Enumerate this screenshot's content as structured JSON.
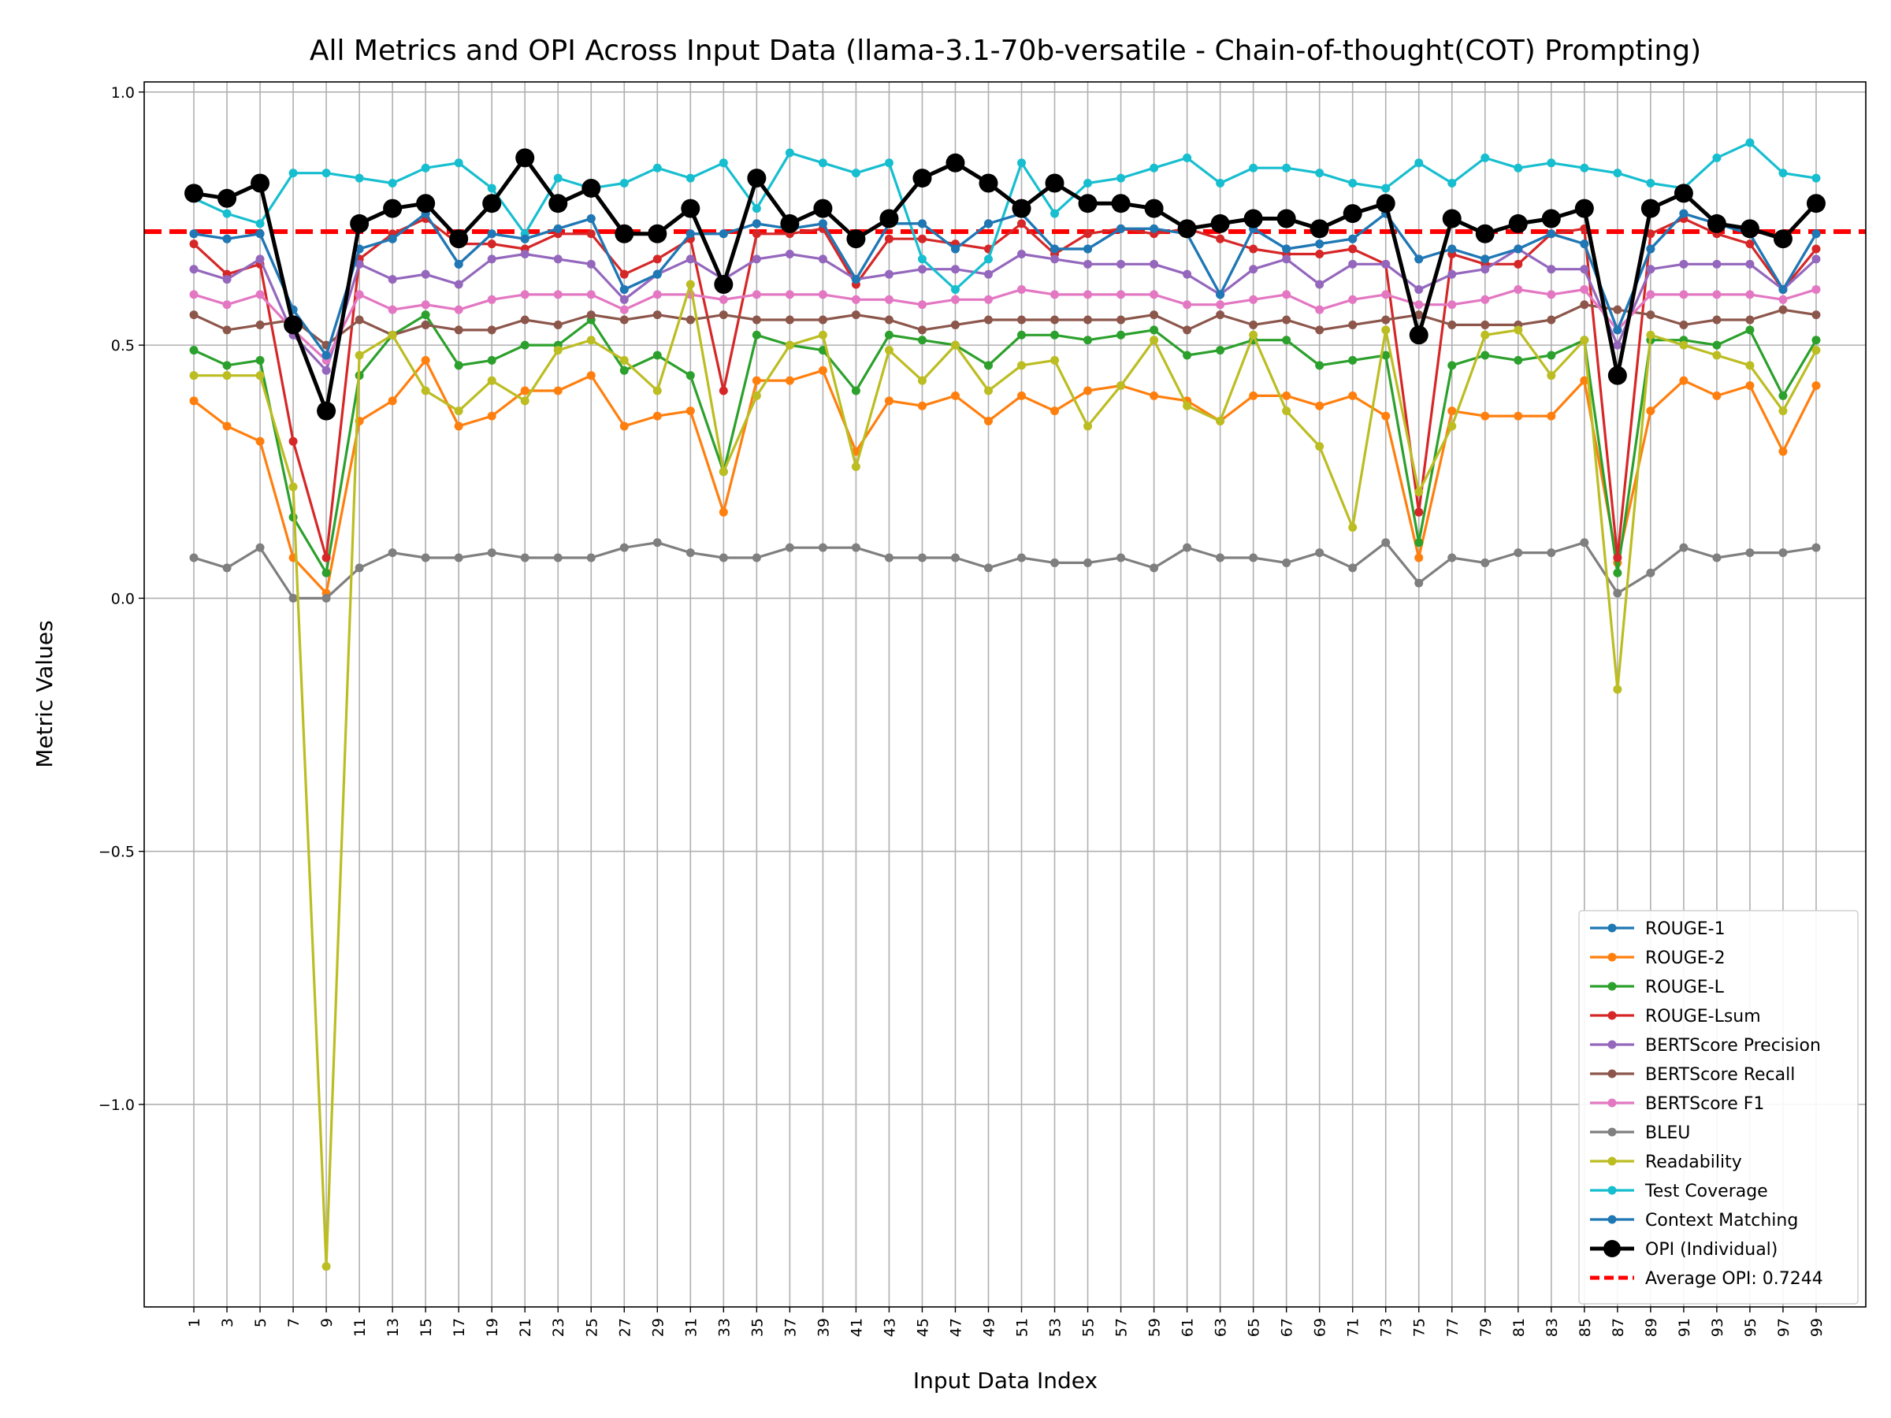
{
  "chart_data": {
    "type": "line",
    "title": "All Metrics and OPI Across Input Data (llama-3.1-70b-versatile - Chain-of-thought(COT) Prompting)",
    "xlabel": "Input Data Index",
    "ylabel": "Metric Values",
    "xlim": [
      -2,
      102
    ],
    "ylim": [
      -1.4,
      1.02
    ],
    "yticks": [
      1.0,
      0.5,
      0.0,
      -0.5,
      -1.0
    ],
    "ytick_labels": [
      "1.0",
      "0.5",
      "0.0",
      "−0.5",
      "−1.0"
    ],
    "xticks": [
      1,
      3,
      5,
      7,
      9,
      11,
      13,
      15,
      17,
      19,
      21,
      23,
      25,
      27,
      29,
      31,
      33,
      35,
      37,
      39,
      41,
      43,
      45,
      47,
      49,
      51,
      53,
      55,
      57,
      59,
      61,
      63,
      65,
      67,
      69,
      71,
      73,
      75,
      77,
      79,
      81,
      83,
      85,
      87,
      89,
      91,
      93,
      95,
      97,
      99
    ],
    "xtick_labels": [
      "1",
      "3",
      "5",
      "7",
      "9",
      "11",
      "13",
      "15",
      "17",
      "19",
      "21",
      "23",
      "25",
      "27",
      "29",
      "31",
      "33",
      "35",
      "37",
      "39",
      "41",
      "43",
      "45",
      "47",
      "49",
      "51",
      "53",
      "55",
      "57",
      "59",
      "61",
      "63",
      "65",
      "67",
      "69",
      "71",
      "73",
      "75",
      "77",
      "79",
      "81",
      "83",
      "85",
      "87",
      "89",
      "91",
      "93",
      "95",
      "97",
      "99"
    ],
    "grid": true,
    "legend_position": "lower-right",
    "x": [
      1,
      3,
      5,
      7,
      9,
      11,
      13,
      15,
      17,
      19,
      21,
      23,
      25,
      27,
      29,
      31,
      33,
      35,
      37,
      39,
      41,
      43,
      45,
      47,
      49,
      51,
      53,
      55,
      57,
      59,
      61,
      63,
      65,
      67,
      69,
      71,
      73,
      75,
      77,
      79,
      81,
      83,
      85,
      87,
      89,
      91,
      93,
      95,
      97,
      99
    ],
    "series": [
      {
        "name": "ROUGE-1",
        "color": "#1f77b4",
        "values": [
          0.72,
          0.71,
          0.72,
          0.57,
          0.48,
          0.69,
          0.71,
          0.76,
          0.66,
          0.72,
          0.71,
          0.73,
          0.75,
          0.61,
          0.64,
          0.72,
          0.72,
          0.74,
          0.73,
          0.74,
          0.63,
          0.74,
          0.74,
          0.69,
          0.74,
          0.76,
          0.69,
          0.69,
          0.73,
          0.73,
          0.72,
          0.6,
          0.73,
          0.69,
          0.7,
          0.71,
          0.76,
          0.67,
          0.69,
          0.67,
          0.69,
          0.72,
          0.7,
          0.53,
          0.69,
          0.76,
          0.74,
          0.72,
          0.61,
          0.72
        ]
      },
      {
        "name": "ROUGE-2",
        "color": "#ff7f0e",
        "values": [
          0.39,
          0.34,
          0.31,
          0.08,
          0.01,
          0.35,
          0.39,
          0.47,
          0.34,
          0.36,
          0.41,
          0.41,
          0.44,
          0.34,
          0.36,
          0.37,
          0.17,
          0.43,
          0.43,
          0.45,
          0.29,
          0.39,
          0.38,
          0.4,
          0.35,
          0.4,
          0.37,
          0.41,
          0.42,
          0.4,
          0.39,
          0.35,
          0.4,
          0.4,
          0.38,
          0.4,
          0.36,
          0.08,
          0.37,
          0.36,
          0.36,
          0.36,
          0.43,
          0.07,
          0.37,
          0.43,
          0.4,
          0.42,
          0.29,
          0.42
        ]
      },
      {
        "name": "ROUGE-L",
        "color": "#2ca02c",
        "values": [
          0.49,
          0.46,
          0.47,
          0.16,
          0.05,
          0.44,
          0.52,
          0.56,
          0.46,
          0.47,
          0.5,
          0.5,
          0.55,
          0.45,
          0.48,
          0.44,
          0.25,
          0.52,
          0.5,
          0.49,
          0.41,
          0.52,
          0.51,
          0.5,
          0.46,
          0.52,
          0.52,
          0.51,
          0.52,
          0.53,
          0.48,
          0.49,
          0.51,
          0.51,
          0.46,
          0.47,
          0.48,
          0.11,
          0.46,
          0.48,
          0.47,
          0.48,
          0.51,
          0.05,
          0.51,
          0.51,
          0.5,
          0.53,
          0.4,
          0.51
        ]
      },
      {
        "name": "ROUGE-Lsum",
        "color": "#d62728",
        "values": [
          0.7,
          0.64,
          0.66,
          0.31,
          0.08,
          0.67,
          0.72,
          0.75,
          0.7,
          0.7,
          0.69,
          0.72,
          0.72,
          0.64,
          0.67,
          0.71,
          0.41,
          0.72,
          0.72,
          0.73,
          0.62,
          0.71,
          0.71,
          0.7,
          0.69,
          0.74,
          0.68,
          0.72,
          0.73,
          0.72,
          0.73,
          0.71,
          0.69,
          0.68,
          0.68,
          0.69,
          0.66,
          0.17,
          0.68,
          0.66,
          0.66,
          0.72,
          0.73,
          0.08,
          0.72,
          0.75,
          0.72,
          0.7,
          0.61,
          0.69
        ]
      },
      {
        "name": "BERTScore Precision",
        "color": "#9467bd",
        "values": [
          0.65,
          0.63,
          0.67,
          0.52,
          0.45,
          0.66,
          0.63,
          0.64,
          0.62,
          0.67,
          0.68,
          0.67,
          0.66,
          0.59,
          0.64,
          0.67,
          0.63,
          0.67,
          0.68,
          0.67,
          0.63,
          0.64,
          0.65,
          0.65,
          0.64,
          0.68,
          0.67,
          0.66,
          0.66,
          0.66,
          0.64,
          0.6,
          0.65,
          0.67,
          0.62,
          0.66,
          0.66,
          0.61,
          0.64,
          0.65,
          0.69,
          0.65,
          0.65,
          0.5,
          0.65,
          0.66,
          0.66,
          0.66,
          0.61,
          0.67
        ]
      },
      {
        "name": "BERTScore Recall",
        "color": "#8c564b",
        "values": [
          0.56,
          0.53,
          0.54,
          0.55,
          0.5,
          0.55,
          0.52,
          0.54,
          0.53,
          0.53,
          0.55,
          0.54,
          0.56,
          0.55,
          0.56,
          0.55,
          0.56,
          0.55,
          0.55,
          0.55,
          0.56,
          0.55,
          0.53,
          0.54,
          0.55,
          0.55,
          0.55,
          0.55,
          0.55,
          0.56,
          0.53,
          0.56,
          0.54,
          0.55,
          0.53,
          0.54,
          0.55,
          0.56,
          0.54,
          0.54,
          0.54,
          0.55,
          0.58,
          0.57,
          0.56,
          0.54,
          0.55,
          0.55,
          0.57,
          0.56
        ]
      },
      {
        "name": "BERTScore F1",
        "color": "#e377c2",
        "values": [
          0.6,
          0.58,
          0.6,
          0.53,
          0.47,
          0.6,
          0.57,
          0.58,
          0.57,
          0.59,
          0.6,
          0.6,
          0.6,
          0.57,
          0.6,
          0.6,
          0.59,
          0.6,
          0.6,
          0.6,
          0.59,
          0.59,
          0.58,
          0.59,
          0.59,
          0.61,
          0.6,
          0.6,
          0.6,
          0.6,
          0.58,
          0.58,
          0.59,
          0.6,
          0.57,
          0.59,
          0.6,
          0.58,
          0.58,
          0.59,
          0.61,
          0.6,
          0.61,
          0.53,
          0.6,
          0.6,
          0.6,
          0.6,
          0.59,
          0.61
        ]
      },
      {
        "name": "BLEU",
        "color": "#7f7f7f",
        "values": [
          0.08,
          0.06,
          0.1,
          0.0,
          0.0,
          0.06,
          0.09,
          0.08,
          0.08,
          0.09,
          0.08,
          0.08,
          0.08,
          0.1,
          0.11,
          0.09,
          0.08,
          0.08,
          0.1,
          0.1,
          0.1,
          0.08,
          0.08,
          0.08,
          0.06,
          0.08,
          0.07,
          0.07,
          0.08,
          0.06,
          0.1,
          0.08,
          0.08,
          0.07,
          0.09,
          0.06,
          0.11,
          0.03,
          0.08,
          0.07,
          0.09,
          0.09,
          0.11,
          0.01,
          0.05,
          0.1,
          0.08,
          0.09,
          0.09,
          0.1
        ]
      },
      {
        "name": "Readability",
        "color": "#bcbd22",
        "values": [
          0.44,
          0.44,
          0.44,
          0.22,
          -1.32,
          0.48,
          0.52,
          0.41,
          0.37,
          0.43,
          0.39,
          0.49,
          0.51,
          0.47,
          0.41,
          0.62,
          0.25,
          0.4,
          0.5,
          0.52,
          0.26,
          0.49,
          0.43,
          0.5,
          0.41,
          0.46,
          0.47,
          0.34,
          0.42,
          0.51,
          0.38,
          0.35,
          0.52,
          0.37,
          0.3,
          0.14,
          0.53,
          0.21,
          0.34,
          0.52,
          0.53,
          0.44,
          0.51,
          -0.18,
          0.52,
          0.5,
          0.48,
          0.46,
          0.37,
          0.49
        ]
      },
      {
        "name": "Test Coverage",
        "color": "#17becf",
        "values": [
          0.79,
          0.76,
          0.74,
          0.84,
          0.84,
          0.83,
          0.82,
          0.85,
          0.86,
          0.81,
          0.72,
          0.83,
          0.81,
          0.82,
          0.85,
          0.83,
          0.86,
          0.77,
          0.88,
          0.86,
          0.84,
          0.86,
          0.67,
          0.61,
          0.67,
          0.86,
          0.76,
          0.82,
          0.83,
          0.85,
          0.87,
          0.82,
          0.85,
          0.85,
          0.84,
          0.82,
          0.81,
          0.86,
          0.82,
          0.87,
          0.85,
          0.86,
          0.85,
          0.84,
          0.82,
          0.81,
          0.87,
          0.9,
          0.84,
          0.83
        ]
      },
      {
        "name": "Context Matching",
        "color": "#1f77b4",
        "values": [
          0.72,
          0.71,
          0.72,
          0.57,
          0.48,
          0.69,
          0.71,
          0.76,
          0.66,
          0.72,
          0.71,
          0.73,
          0.75,
          0.61,
          0.64,
          0.72,
          0.72,
          0.74,
          0.73,
          0.74,
          0.63,
          0.74,
          0.74,
          0.69,
          0.74,
          0.76,
          0.69,
          0.69,
          0.73,
          0.73,
          0.72,
          0.6,
          0.73,
          0.69,
          0.7,
          0.71,
          0.76,
          0.67,
          0.69,
          0.67,
          0.69,
          0.72,
          0.7,
          0.53,
          0.69,
          0.76,
          0.74,
          0.72,
          0.61,
          0.72
        ]
      },
      {
        "name": "OPI (Individual)",
        "color": "#000000",
        "emphasis": true,
        "values": [
          0.8,
          0.79,
          0.82,
          0.54,
          0.37,
          0.74,
          0.77,
          0.78,
          0.71,
          0.78,
          0.87,
          0.78,
          0.81,
          0.72,
          0.72,
          0.77,
          0.62,
          0.83,
          0.74,
          0.77,
          0.71,
          0.75,
          0.83,
          0.86,
          0.82,
          0.77,
          0.82,
          0.78,
          0.78,
          0.77,
          0.73,
          0.74,
          0.75,
          0.75,
          0.73,
          0.76,
          0.78,
          0.52,
          0.75,
          0.72,
          0.74,
          0.75,
          0.77,
          0.44,
          0.77,
          0.8,
          0.74,
          0.73,
          0.71,
          0.78
        ]
      }
    ],
    "reference_line": {
      "name": "Average OPI: 0.7244",
      "value": 0.7244,
      "color": "#ff0000",
      "style": "dashed"
    }
  }
}
